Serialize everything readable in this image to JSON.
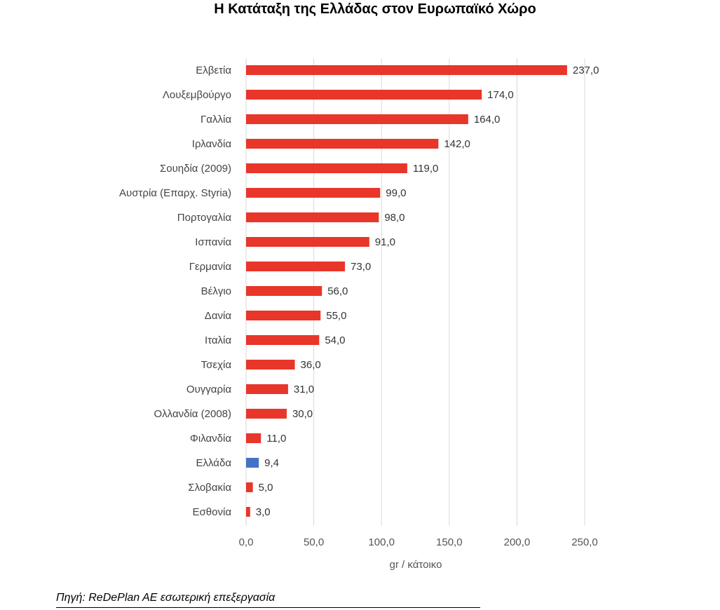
{
  "chart_data": {
    "type": "bar",
    "orientation": "horizontal",
    "title": "Η Κατάταξη της Ελλάδας στον Ευρωπαϊκό Χώρο",
    "xlabel": "gr / κάτοικο",
    "ylabel": "",
    "xlim": [
      0,
      250
    ],
    "xticks": [
      "0,0",
      "50,0",
      "100,0",
      "150,0",
      "200,0",
      "250,0"
    ],
    "xtick_values": [
      0,
      50,
      100,
      150,
      200,
      250
    ],
    "grid": true,
    "categories": [
      "Ελβετία",
      "Λουξεμβούργο",
      "Γαλλία",
      "Ιρλανδία",
      "Σουηδία (2009)",
      "Αυστρία (Επαρχ. Styria)",
      "Πορτογαλία",
      "Ισπανία",
      "Γερμανία",
      "Βέλγιο",
      "Δανία",
      "Ιταλία",
      "Τσεχία",
      "Ουγγαρία",
      "Ολλανδία (2008)",
      "Φιλανδία",
      "Ελλάδα",
      "Σλοβακία",
      "Εσθονία"
    ],
    "values": [
      237.0,
      174.0,
      164.0,
      142.0,
      119.0,
      99.0,
      98.0,
      91.0,
      73.0,
      56.0,
      55.0,
      54.0,
      36.0,
      31.0,
      30.0,
      11.0,
      9.4,
      5.0,
      3.0
    ],
    "value_labels": [
      "237,0",
      "174,0",
      "164,0",
      "142,0",
      "119,0",
      "99,0",
      "98,0",
      "91,0",
      "73,0",
      "56,0",
      "55,0",
      "54,0",
      "36,0",
      "31,0",
      "30,0",
      "11,0",
      "9,4",
      "5,0",
      "3,0"
    ],
    "bar_color": "#e8362a",
    "highlight_color": "#4472c4",
    "highlight_category": "Ελλάδα"
  },
  "source": "Πηγή: ReDePlan AE εσωτερική επεξεργασία"
}
